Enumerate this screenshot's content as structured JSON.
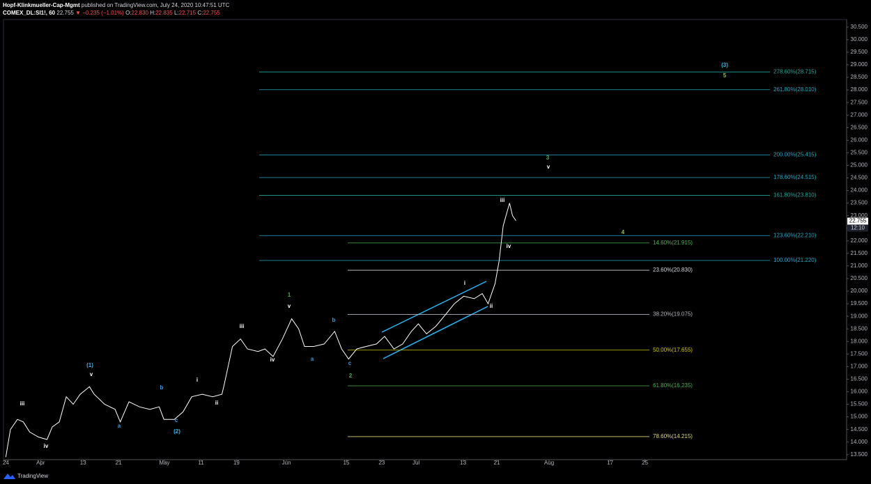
{
  "header": {
    "author": "Hopf-Klinkmueller-Cap-Mgmt",
    "published": "published on TradingView.com, July 24, 2020 10:47:51 UTC",
    "symbol": "COMEX_DL:SI1!, 60",
    "last": "22.755",
    "arrow": "▼",
    "change": "−0.235 (−1.01%)",
    "ohlc": [
      {
        "label": "O:",
        "value": "22.830"
      },
      {
        "label": "H:",
        "value": "22.835"
      },
      {
        "label": "L:",
        "value": "22.715"
      },
      {
        "label": "C:",
        "value": "22.755"
      }
    ]
  },
  "brand": "TradingView",
  "chart_data": {
    "type": "line",
    "color": "#ffffff",
    "x": [
      0,
      0.8,
      2.0,
      3.0,
      4.1,
      5.6,
      7.1,
      8.0,
      9.2,
      10.4,
      11.6,
      12.8,
      14.4,
      15.2,
      17.0,
      18.8,
      19.7,
      21.2,
      23.0,
      24.8,
      26.4,
      27.2,
      29.0,
      30.5,
      32.0,
      33.8,
      35.6,
      37.2,
      37.6,
      39.0,
      40.4,
      41.6,
      43.4,
      44.6,
      46.0,
      47.6,
      49.2,
      50.4,
      51.4,
      53.0,
      54.8,
      56.6,
      57.8,
      59.0,
      60.4,
      62.0,
      63.8,
      65.2,
      66.8,
      68.3,
      69.8,
      71.0,
      72.4,
      74.0,
      75.8,
      77.2,
      78.8,
      80.6,
      82.0,
      83.0,
      84.2,
      84.9,
      85.6,
      86.2,
      86.7,
      87.2,
      87.8
    ],
    "values": [
      13.4,
      14.5,
      14.9,
      14.8,
      14.4,
      14.2,
      14.1,
      14.6,
      14.8,
      15.8,
      15.5,
      15.9,
      16.2,
      15.9,
      15.5,
      15.3,
      14.8,
      15.6,
      15.4,
      15.3,
      15.4,
      14.9,
      14.9,
      15.2,
      15.8,
      15.9,
      15.8,
      15.9,
      16.3,
      17.8,
      18.1,
      17.7,
      17.6,
      17.7,
      17.4,
      18.1,
      18.9,
      18.5,
      17.8,
      17.8,
      17.9,
      18.4,
      17.7,
      17.3,
      17.7,
      17.8,
      17.9,
      18.2,
      17.7,
      17.9,
      18.4,
      18.7,
      18.3,
      18.6,
      19.1,
      19.5,
      19.8,
      19.7,
      19.9,
      19.5,
      20.3,
      21.2,
      22.6,
      23.1,
      23.5,
      23.0,
      22.8
    ],
    "xlim": [
      -0.4,
      144.7
    ],
    "xticks": [
      {
        "value": 0,
        "label": "24"
      },
      {
        "value": 6,
        "label": "Apr"
      },
      {
        "value": 13.3,
        "label": "13"
      },
      {
        "value": 19.4,
        "label": "21"
      },
      {
        "value": 27.3,
        "label": "May"
      },
      {
        "value": 33.6,
        "label": "11"
      },
      {
        "value": 39.7,
        "label": "19"
      },
      {
        "value": 48.3,
        "label": "Jun"
      },
      {
        "value": 58.6,
        "label": "15"
      },
      {
        "value": 64.7,
        "label": "23"
      },
      {
        "value": 70.6,
        "label": "Jul"
      },
      {
        "value": 78.7,
        "label": "13"
      },
      {
        "value": 84.5,
        "label": "21"
      },
      {
        "value": 93.5,
        "label": "Aug"
      },
      {
        "value": 104,
        "label": "17"
      },
      {
        "value": 110,
        "label": "25"
      }
    ],
    "ylim": [
      13.3,
      30.8
    ],
    "yticks": [
      {
        "value": 13.5,
        "label": "13.500"
      },
      {
        "value": 14,
        "label": "14.000"
      },
      {
        "value": 14.5,
        "label": "14.500"
      },
      {
        "value": 15,
        "label": "15.000"
      },
      {
        "value": 15.5,
        "label": "15.500"
      },
      {
        "value": 16,
        "label": "16.000"
      },
      {
        "value": 16.5,
        "label": "16.500"
      },
      {
        "value": 17,
        "label": "17.000"
      },
      {
        "value": 17.5,
        "label": "17.500"
      },
      {
        "value": 18,
        "label": "18.000"
      },
      {
        "value": 18.5,
        "label": "18.500"
      },
      {
        "value": 19,
        "label": "19.000"
      },
      {
        "value": 19.5,
        "label": "19.500"
      },
      {
        "value": 20,
        "label": "20.000"
      },
      {
        "value": 20.5,
        "label": "20.500"
      },
      {
        "value": 21,
        "label": "21.000"
      },
      {
        "value": 21.5,
        "label": "21.500"
      },
      {
        "value": 22,
        "label": "22.000"
      },
      {
        "value": 22.5,
        "label": "22.500"
      },
      {
        "value": 23,
        "label": "23.000"
      },
      {
        "value": 23.5,
        "label": "23.500"
      },
      {
        "value": 24,
        "label": "24.000"
      },
      {
        "value": 24.5,
        "label": "24.500"
      },
      {
        "value": 25,
        "label": "25.000"
      },
      {
        "value": 25.5,
        "label": "25.500"
      },
      {
        "value": 26,
        "label": "26.000"
      },
      {
        "value": 26.5,
        "label": "26.500"
      },
      {
        "value": 27,
        "label": "27.000"
      },
      {
        "value": 27.5,
        "label": "27.500"
      },
      {
        "value": 28,
        "label": "28.000"
      },
      {
        "value": 28.5,
        "label": "28.500"
      },
      {
        "value": 29,
        "label": "29.000"
      },
      {
        "value": 29.5,
        "label": "29.500"
      },
      {
        "value": 30,
        "label": "30.000"
      },
      {
        "value": 30.5,
        "label": "30.500"
      }
    ],
    "last_price": {
      "value": 22.755,
      "label": "22.755",
      "time": "12:10"
    },
    "fib_extension": [
      {
        "value": 28.715,
        "label": "278.60%(28.715)",
        "color": "#26a69a"
      },
      {
        "value": 28.01,
        "label": "261.80%(28.010)",
        "color": "#26a6c4"
      },
      {
        "value": 25.415,
        "label": "200.00%(25.415)",
        "color": "#26a6c4"
      },
      {
        "value": 24.515,
        "label": "178.60%(24.515)",
        "color": "#26a6c4"
      },
      {
        "value": 23.81,
        "label": "161.80%(23.810)",
        "color": "#26a69a"
      },
      {
        "value": 22.21,
        "label": "123.60%(22.210)",
        "color": "#26a6c4"
      },
      {
        "value": 21.22,
        "label": "100.00%(21.220)",
        "color": "#26a6c4"
      }
    ],
    "fib_retracement": [
      {
        "value": 21.915,
        "label": "14.60%(21.915)",
        "color": "#4caf50"
      },
      {
        "value": 20.83,
        "label": "23.60%(20.830)",
        "color": "#d1d4dc"
      },
      {
        "value": 19.075,
        "label": "38.20%(19.075)",
        "color": "#b2b5be"
      },
      {
        "value": 17.655,
        "label": "50.00%(17.655)",
        "color": "#d4c600"
      },
      {
        "value": 16.235,
        "label": "61.80%(16.235)",
        "color": "#4caf50"
      },
      {
        "value": 14.215,
        "label": "78.60%(14.215)",
        "color": "#e0d87a"
      }
    ],
    "annotations": [
      {
        "text": "iii",
        "color": "#ffffff"
      },
      {
        "text": "iv",
        "color": "#ffffff"
      },
      {
        "text": "(1)",
        "color": "#3bb3e0"
      },
      {
        "text": "v",
        "color": "#ffffff"
      },
      {
        "text": "a",
        "color": "#3b9de0"
      },
      {
        "text": "b",
        "color": "#3b9de0"
      },
      {
        "text": "c",
        "color": "#3b9de0"
      },
      {
        "text": "(2)",
        "color": "#3bb3e0"
      },
      {
        "text": "i",
        "color": "#ffffff"
      },
      {
        "text": "ii",
        "color": "#ffffff"
      },
      {
        "text": "iii",
        "color": "#ffffff"
      },
      {
        "text": "iv",
        "color": "#ffffff"
      },
      {
        "text": "1",
        "color": "#4caf50"
      },
      {
        "text": "v",
        "color": "#ffffff"
      },
      {
        "text": "a",
        "color": "#3b9de0"
      },
      {
        "text": "b",
        "color": "#3b9de0"
      },
      {
        "text": "c",
        "color": "#3b9de0"
      },
      {
        "text": "2",
        "color": "#4caf50"
      },
      {
        "text": "i",
        "color": "#ffffff"
      },
      {
        "text": "ii",
        "color": "#ffffff"
      },
      {
        "text": "iii",
        "color": "#ffffff"
      },
      {
        "text": "iv",
        "color": "#ffffff"
      },
      {
        "text": "3",
        "color": "#4caf50"
      },
      {
        "text": "v",
        "color": "#ffffff"
      },
      {
        "text": "4",
        "color": "#8bc34a"
      },
      {
        "text": "(3)",
        "color": "#3bb3e0"
      },
      {
        "text": "5",
        "color": "#8bc34a"
      }
    ]
  }
}
